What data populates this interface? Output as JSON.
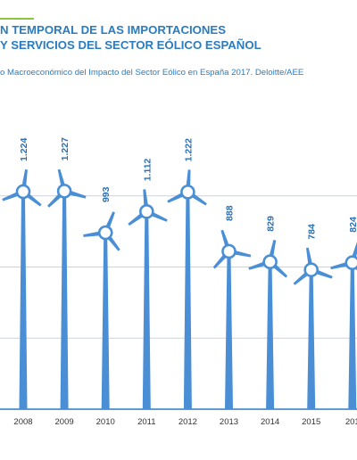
{
  "title": {
    "line1": "N TEMPORAL DE LAS IMPORTACIONES",
    "line2": "Y SERVICIOS DEL SECTOR EÓLICO ESPAÑOL"
  },
  "source": "o Macroeconómico del Impacto del Sector Eólico en España 2017. Deloitte/AEE",
  "colors": {
    "bar": "#4a8fd6",
    "title": "#2a7bbf",
    "accent_rule": "#8cc63f",
    "label": "#2a6fb5",
    "gridline": "#a9c9ea",
    "axis": "#2a7bbf"
  },
  "chart_data": {
    "type": "bar",
    "categories": [
      "2008",
      "2009",
      "2010",
      "2011",
      "2012",
      "2013",
      "2014",
      "2015",
      "201"
    ],
    "values": [
      1224,
      1227,
      993,
      1112,
      1222,
      888,
      829,
      784,
      824
    ],
    "value_labels": [
      "1.224",
      "1.227",
      "993",
      "1.112",
      "1.222",
      "888",
      "829",
      "784",
      "824"
    ],
    "ylim": [
      0,
      1600
    ],
    "grid": true,
    "mark_style": "wind-turbine"
  }
}
